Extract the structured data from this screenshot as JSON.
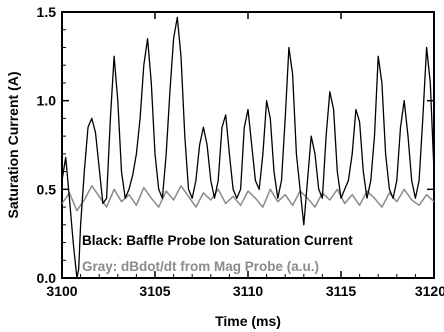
{
  "chart_data": {
    "type": "line",
    "xlabel": "Time (ms)",
    "ylabel": "Saturation Current (A)",
    "xlim": [
      3100,
      3120
    ],
    "ylim": [
      0.0,
      1.5
    ],
    "x_ticks": [
      "3100",
      "3105",
      "3110",
      "3115",
      "3120"
    ],
    "y_ticks": [
      "0.0",
      "0.5",
      "1.0",
      "1.5"
    ],
    "grid": false,
    "annotations": [
      {
        "text": "Black: Baffle Probe Ion Saturation Current",
        "color": "#000000"
      },
      {
        "text": "Gray: dBdot/dt from Mag Probe (a.u.)",
        "color": "#8a8a8a"
      }
    ],
    "series": [
      {
        "color": "#000000",
        "x": [
          3100.0,
          3100.2,
          3100.4,
          3100.6,
          3100.8,
          3100.9,
          3101.0,
          3101.2,
          3101.4,
          3101.6,
          3101.8,
          3102.0,
          3102.2,
          3102.4,
          3102.6,
          3102.8,
          3103.0,
          3103.2,
          3103.4,
          3103.6,
          3103.8,
          3104.0,
          3104.2,
          3104.4,
          3104.6,
          3104.8,
          3105.0,
          3105.2,
          3105.4,
          3105.6,
          3105.8,
          3106.0,
          3106.2,
          3106.4,
          3106.6,
          3106.8,
          3107.0,
          3107.2,
          3107.4,
          3107.6,
          3107.8,
          3108.0,
          3108.2,
          3108.4,
          3108.6,
          3108.8,
          3109.0,
          3109.2,
          3109.4,
          3109.6,
          3109.8,
          3110.0,
          3110.2,
          3110.4,
          3110.6,
          3110.8,
          3111.0,
          3111.2,
          3111.4,
          3111.6,
          3111.8,
          3112.0,
          3112.2,
          3112.4,
          3112.6,
          3112.8,
          3113.0,
          3113.2,
          3113.4,
          3113.6,
          3113.8,
          3114.0,
          3114.2,
          3114.4,
          3114.6,
          3114.8,
          3115.0,
          3115.2,
          3115.4,
          3115.6,
          3115.8,
          3116.0,
          3116.2,
          3116.4,
          3116.6,
          3116.8,
          3117.0,
          3117.2,
          3117.4,
          3117.6,
          3117.8,
          3118.0,
          3118.2,
          3118.4,
          3118.6,
          3118.8,
          3119.0,
          3119.2,
          3119.4,
          3119.6,
          3119.8,
          3120.0
        ],
        "y": [
          0.55,
          0.68,
          0.45,
          0.2,
          0.0,
          0.05,
          0.3,
          0.6,
          0.85,
          0.9,
          0.82,
          0.62,
          0.42,
          0.45,
          0.9,
          1.25,
          1.0,
          0.6,
          0.45,
          0.5,
          0.58,
          0.7,
          0.9,
          1.2,
          1.35,
          1.1,
          0.7,
          0.5,
          0.45,
          0.7,
          1.05,
          1.35,
          1.47,
          1.25,
          0.8,
          0.5,
          0.45,
          0.55,
          0.75,
          0.85,
          0.75,
          0.55,
          0.45,
          0.55,
          0.85,
          0.92,
          0.7,
          0.5,
          0.45,
          0.5,
          0.85,
          0.95,
          0.75,
          0.55,
          0.5,
          0.7,
          1.0,
          0.9,
          0.6,
          0.45,
          0.55,
          0.9,
          1.3,
          1.15,
          0.7,
          0.5,
          0.3,
          0.55,
          0.8,
          0.7,
          0.5,
          0.45,
          0.8,
          1.05,
          0.95,
          0.6,
          0.45,
          0.5,
          0.55,
          0.7,
          0.95,
          0.88,
          0.6,
          0.45,
          0.55,
          0.8,
          1.25,
          1.1,
          0.7,
          0.5,
          0.45,
          0.55,
          0.85,
          1.0,
          0.8,
          0.55,
          0.45,
          0.55,
          0.9,
          1.3,
          1.1,
          0.6
        ]
      },
      {
        "color": "#8a8a8a",
        "x": [
          3100.0,
          3100.4,
          3100.8,
          3101.2,
          3101.6,
          3102.0,
          3102.4,
          3102.8,
          3103.2,
          3103.6,
          3104.0,
          3104.4,
          3104.8,
          3105.2,
          3105.6,
          3106.0,
          3106.4,
          3106.8,
          3107.2,
          3107.6,
          3108.0,
          3108.4,
          3108.8,
          3109.2,
          3109.6,
          3110.0,
          3110.4,
          3110.8,
          3111.2,
          3111.6,
          3112.0,
          3112.4,
          3112.8,
          3113.2,
          3113.6,
          3114.0,
          3114.4,
          3114.8,
          3115.2,
          3115.6,
          3116.0,
          3116.4,
          3116.8,
          3117.2,
          3117.6,
          3118.0,
          3118.4,
          3118.8,
          3119.2,
          3119.6,
          3120.0
        ],
        "y": [
          0.42,
          0.48,
          0.38,
          0.44,
          0.52,
          0.46,
          0.4,
          0.5,
          0.43,
          0.47,
          0.41,
          0.51,
          0.45,
          0.4,
          0.49,
          0.44,
          0.52,
          0.46,
          0.4,
          0.48,
          0.44,
          0.5,
          0.42,
          0.46,
          0.41,
          0.49,
          0.45,
          0.4,
          0.5,
          0.43,
          0.47,
          0.41,
          0.49,
          0.45,
          0.4,
          0.48,
          0.44,
          0.5,
          0.42,
          0.47,
          0.41,
          0.49,
          0.45,
          0.4,
          0.48,
          0.43,
          0.5,
          0.44,
          0.41,
          0.47,
          0.43
        ]
      }
    ]
  }
}
